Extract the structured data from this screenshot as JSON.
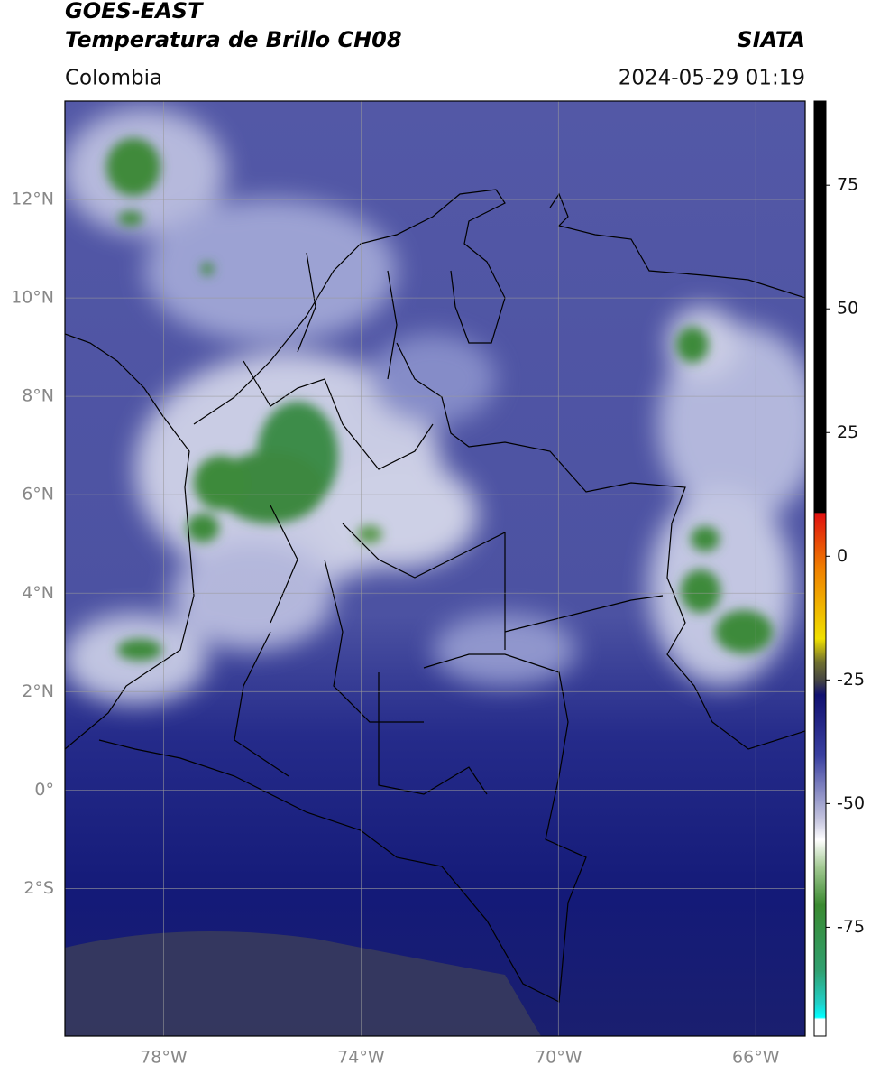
{
  "header": {
    "title": "GOES-EAST",
    "subtitle": "Temperatura de Brillo CH08",
    "source": "SIATA",
    "region": "Colombia",
    "timestamp": "2024-05-29 01:19"
  },
  "map": {
    "lon_range": [
      -80,
      -65
    ],
    "lat_range": [
      -5,
      14
    ],
    "lat_ticks": [
      {
        "value": 12,
        "label": "12°N"
      },
      {
        "value": 10,
        "label": "10°N"
      },
      {
        "value": 8,
        "label": "8°N"
      },
      {
        "value": 6,
        "label": "6°N"
      },
      {
        "value": 4,
        "label": "4°N"
      },
      {
        "value": 2,
        "label": "2°N"
      },
      {
        "value": 0,
        "label": "0°"
      },
      {
        "value": -2,
        "label": "2°S"
      }
    ],
    "lon_ticks": [
      {
        "value": -78,
        "label": "78°W"
      },
      {
        "value": -74,
        "label": "74°W"
      },
      {
        "value": -70,
        "label": "70°W"
      },
      {
        "value": -66,
        "label": "66°W"
      }
    ]
  },
  "colorbar": {
    "range": [
      -97,
      92
    ],
    "ticks": [
      75,
      50,
      25,
      0,
      -25,
      -50,
      -75
    ]
  }
}
